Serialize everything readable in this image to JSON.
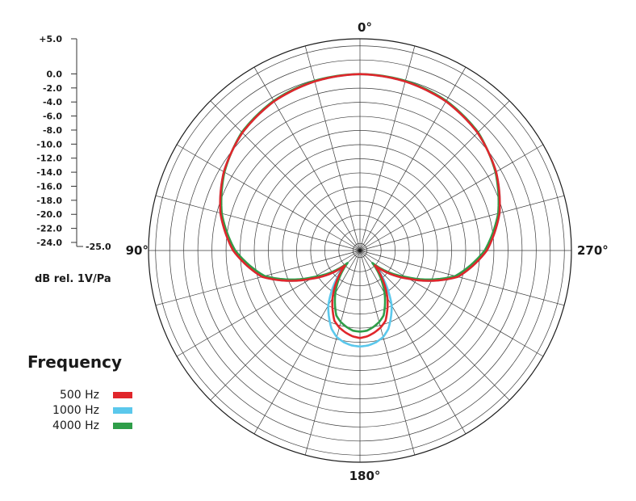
{
  "chart_data": {
    "type": "polar-line",
    "ylabel": "dB rel. 1V/Pa",
    "angle_tick_labels": [
      {
        "angle": 0,
        "label": "0°"
      },
      {
        "angle": 90,
        "label": "90°"
      },
      {
        "angle": 180,
        "label": "180°"
      },
      {
        "angle": 270,
        "label": "270°"
      }
    ],
    "angle_grid_step_deg": 15,
    "radial_range_db": [
      -25.0,
      5.0
    ],
    "radial_grid_step_db": 2.0,
    "radial_tick_labels": [
      "+5.0",
      "0.0",
      "-2.0",
      "-4.0",
      "-6.0",
      "-8.0",
      "-10.0",
      "-12.0",
      "-14.0",
      "-16.0",
      "-18.0",
      "-20.0",
      "-22.0",
      "-24.0",
      "-25.0"
    ],
    "legend_title": "Frequency",
    "legend_placement": "bottom-left",
    "angles_deg": [
      0,
      15,
      30,
      45,
      60,
      75,
      90,
      105,
      120,
      135,
      150,
      160,
      165,
      170,
      175,
      180
    ],
    "series": [
      {
        "name": "500 Hz",
        "color": "#e0262b",
        "values": [
          0.0,
          -0.2,
          -0.6,
          -1.4,
          -2.7,
          -4.5,
          -7.0,
          -10.6,
          -17.0,
          -22.0,
          -17.2,
          -14.4,
          -13.7,
          -13.2,
          -12.8,
          -12.6
        ]
      },
      {
        "name": "1000 Hz",
        "color": "#5bc8ec",
        "values": [
          0.0,
          -0.2,
          -0.6,
          -1.4,
          -2.7,
          -4.5,
          -7.0,
          -10.6,
          -17.0,
          -22.0,
          -16.0,
          -13.2,
          -12.3,
          -11.8,
          -11.5,
          -11.4
        ]
      },
      {
        "name": "4000 Hz",
        "color": "#2f9e49",
        "values": [
          0.0,
          -0.1,
          -0.5,
          -1.3,
          -2.8,
          -4.7,
          -7.3,
          -11.0,
          -17.5,
          -22.5,
          -18.0,
          -15.2,
          -14.5,
          -14.0,
          -13.6,
          -13.5
        ]
      }
    ]
  }
}
